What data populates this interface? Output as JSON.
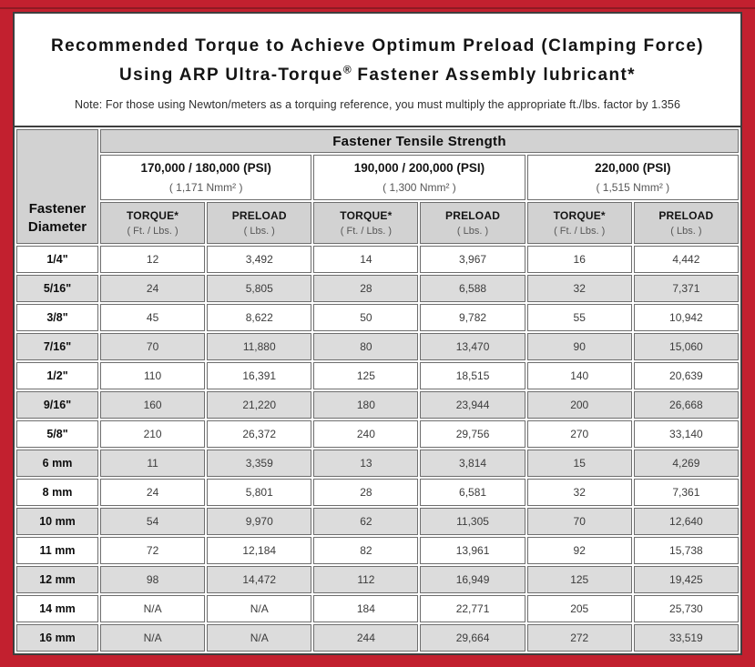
{
  "colors": {
    "frame_red": "#c2202f",
    "frame_accent_dark_red": "#8e1a23",
    "panel_border": "#3e3e3e",
    "cell_border": "#6e6e6e",
    "header_gray": "#d2d2d2",
    "row_alt_gray": "#dcdcdc"
  },
  "header": {
    "title_line1": "Recommended Torque to Achieve Optimum Preload (Clamping Force)",
    "title_line2": {
      "pre": "Using ARP Ultra-Torque",
      "sup": "®",
      "post": " Fastener Assembly lubricant*"
    },
    "note": "Note: For those using Newton/meters as a torquing reference, you must multiply the appropriate ft./lbs. factor by 1.356"
  },
  "table": {
    "diameter_header": "Fastener Diameter",
    "tensile_header": "Fastener Tensile Strength",
    "groups": [
      {
        "psi": "170,000 / 180,000 (PSI)",
        "nmm": "( 1,171 Nmm² )"
      },
      {
        "psi": "190,000 / 200,000 (PSI)",
        "nmm": "( 1,300 Nmm² )"
      },
      {
        "psi": "220,000 (PSI)",
        "nmm": "( 1,515 Nmm² )"
      }
    ],
    "col_headers": {
      "torque": "TORQUE*",
      "torque_unit": "( Ft. / Lbs. )",
      "preload": "PRELOAD",
      "preload_unit": "( Lbs. )"
    },
    "rows": [
      {
        "d": "1/4\"",
        "v": [
          "12",
          "3,492",
          "14",
          "3,967",
          "16",
          "4,442"
        ]
      },
      {
        "d": "5/16\"",
        "v": [
          "24",
          "5,805",
          "28",
          "6,588",
          "32",
          "7,371"
        ]
      },
      {
        "d": "3/8\"",
        "v": [
          "45",
          "8,622",
          "50",
          "9,782",
          "55",
          "10,942"
        ]
      },
      {
        "d": "7/16\"",
        "v": [
          "70",
          "11,880",
          "80",
          "13,470",
          "90",
          "15,060"
        ]
      },
      {
        "d": "1/2\"",
        "v": [
          "110",
          "16,391",
          "125",
          "18,515",
          "140",
          "20,639"
        ]
      },
      {
        "d": "9/16\"",
        "v": [
          "160",
          "21,220",
          "180",
          "23,944",
          "200",
          "26,668"
        ]
      },
      {
        "d": "5/8\"",
        "v": [
          "210",
          "26,372",
          "240",
          "29,756",
          "270",
          "33,140"
        ]
      },
      {
        "d": "6 mm",
        "v": [
          "11",
          "3,359",
          "13",
          "3,814",
          "15",
          "4,269"
        ]
      },
      {
        "d": "8 mm",
        "v": [
          "24",
          "5,801",
          "28",
          "6,581",
          "32",
          "7,361"
        ]
      },
      {
        "d": "10 mm",
        "v": [
          "54",
          "9,970",
          "62",
          "11,305",
          "70",
          "12,640"
        ]
      },
      {
        "d": "11 mm",
        "v": [
          "72",
          "12,184",
          "82",
          "13,961",
          "92",
          "15,738"
        ]
      },
      {
        "d": "12 mm",
        "v": [
          "98",
          "14,472",
          "112",
          "16,949",
          "125",
          "19,425"
        ]
      },
      {
        "d": "14 mm",
        "v": [
          "N/A",
          "N/A",
          "184",
          "22,771",
          "205",
          "25,730"
        ]
      },
      {
        "d": "16 mm",
        "v": [
          "N/A",
          "N/A",
          "244",
          "29,664",
          "272",
          "33,519"
        ]
      }
    ]
  }
}
